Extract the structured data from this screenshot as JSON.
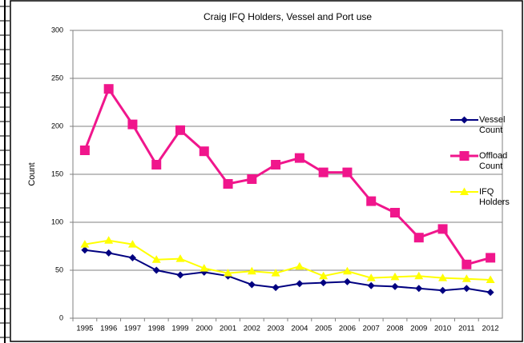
{
  "chart_data": {
    "type": "line",
    "title": "Craig IFQ Holders,  Vessel and Port use",
    "ylabel": "Count",
    "categories": [
      "1995",
      "1996",
      "1997",
      "1998",
      "1999",
      "2000",
      "2001",
      "2002",
      "2003",
      "2004",
      "2005",
      "2006",
      "2007",
      "2008",
      "2009",
      "2010",
      "2011",
      "2012"
    ],
    "series": [
      {
        "name": "Vessel Count",
        "color": "#000080",
        "marker": "diamond",
        "values": [
          71,
          68,
          63,
          50,
          45,
          48,
          44,
          35,
          32,
          36,
          37,
          38,
          34,
          33,
          31,
          29,
          31,
          27
        ]
      },
      {
        "name": "Offload Count",
        "color": "#f0168c",
        "marker": "square",
        "values": [
          175,
          239,
          202,
          160,
          196,
          174,
          140,
          145,
          160,
          167,
          152,
          152,
          122,
          110,
          84,
          93,
          56,
          63
        ]
      },
      {
        "name": "IFQ Holders",
        "color": "#ffff00",
        "marker": "triangle",
        "values": [
          77,
          81,
          77,
          61,
          62,
          52,
          47,
          49,
          47,
          54,
          44,
          49,
          42,
          43,
          44,
          42,
          41,
          40
        ]
      }
    ],
    "ylim": [
      0,
      300
    ],
    "yticks": [
      0,
      50,
      100,
      150,
      200,
      250,
      300
    ],
    "grid": true,
    "legend": "right"
  }
}
